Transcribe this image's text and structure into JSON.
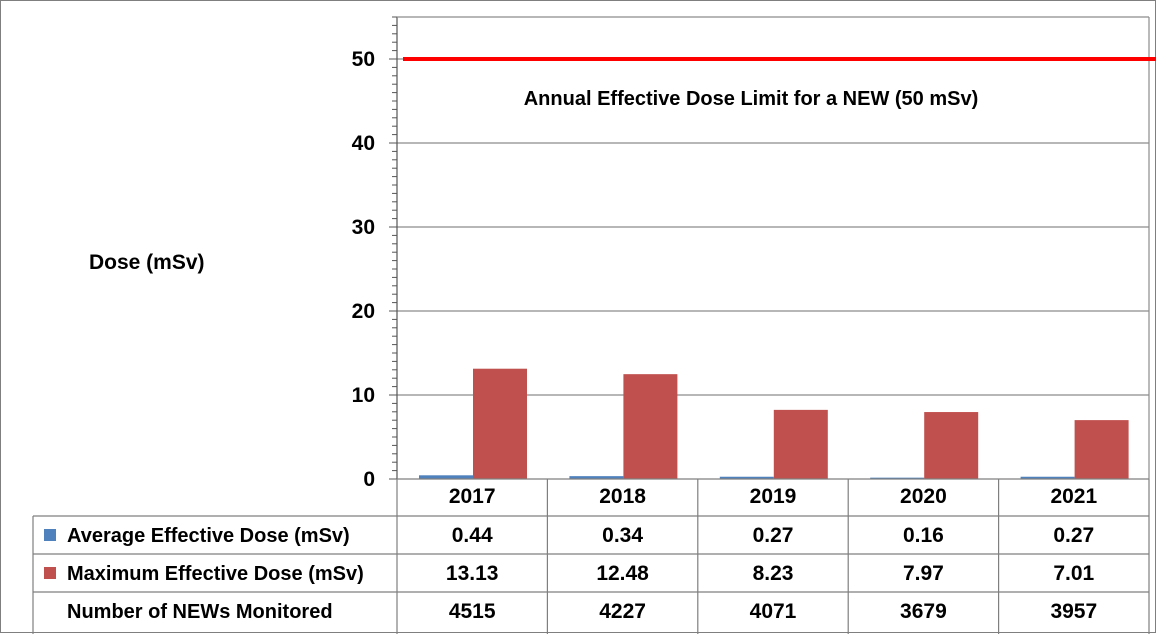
{
  "chart_data": {
    "type": "bar",
    "title": "",
    "xlabel": "",
    "ylabel": "Dose (mSv)",
    "ylim": [
      0,
      55
    ],
    "yticks": [
      0,
      10,
      20,
      30,
      40,
      50
    ],
    "grid": true,
    "categories": [
      "2017",
      "2018",
      "2019",
      "2020",
      "2021"
    ],
    "series": [
      {
        "name": "Average Effective Dose (mSv)",
        "color": "#4f81bd",
        "values": [
          0.44,
          0.34,
          0.27,
          0.16,
          0.27
        ]
      },
      {
        "name": "Maximum Effective Dose (mSv)",
        "color": "#c0504d",
        "values": [
          13.13,
          12.48,
          8.23,
          7.97,
          7.01
        ]
      }
    ],
    "reference_line": {
      "value": 50,
      "color": "#ff0000",
      "label": "Annual Effective Dose Limit for a NEW (50 mSv)"
    },
    "data_table": {
      "rows": [
        {
          "label": "Average Effective Dose (mSv)",
          "legend_color": "#4f81bd",
          "values": [
            "0.44",
            "0.34",
            "0.27",
            "0.16",
            "0.27"
          ]
        },
        {
          "label": "Maximum Effective Dose (mSv)",
          "legend_color": "#c0504d",
          "values": [
            "13.13",
            "12.48",
            "8.23",
            "7.97",
            "7.01"
          ]
        },
        {
          "label": "Number of NEWs Monitored",
          "legend_color": "",
          "values": [
            "4515",
            "4227",
            "4071",
            "3679",
            "3957"
          ]
        }
      ]
    }
  }
}
